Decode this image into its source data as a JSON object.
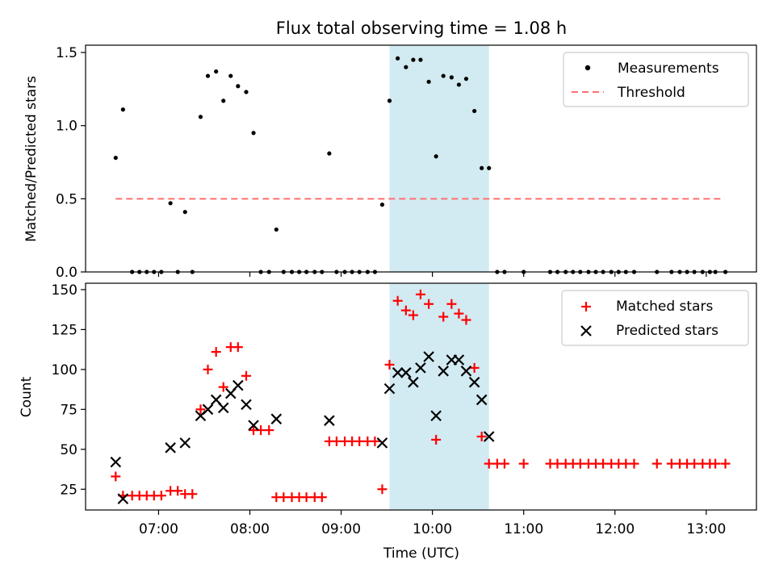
{
  "title": "Flux total observing time = 1.08 h",
  "colors": {
    "threshold": "#ff7070",
    "matched": "#ff0000",
    "predicted": "#000000",
    "span": "#add8e6"
  },
  "chart_data": [
    {
      "type": "scatter",
      "ylabel": "Matched/Predicted stars",
      "ylim": [
        0,
        1.55
      ],
      "xlim_hours": [
        6.2,
        13.55
      ],
      "yticks": [
        0.0,
        0.5,
        1.0,
        1.5
      ],
      "ytick_labels": [
        "0.0",
        "0.5",
        "1.0",
        "1.5"
      ],
      "highlight_span_hours": [
        9.53,
        10.62
      ],
      "threshold": {
        "value": 0.5,
        "x_hours": [
          6.53,
          13.2
        ]
      },
      "legend_location": "upper right",
      "legend": [
        "Measurements",
        "Threshold"
      ],
      "series": [
        {
          "name": "Measurements",
          "x": [
            6.53,
            6.61,
            6.71,
            6.79,
            6.87,
            6.95,
            7.03,
            7.13,
            7.21,
            7.29,
            7.37,
            7.46,
            7.54,
            7.63,
            7.71,
            7.79,
            7.87,
            7.96,
            8.04,
            8.12,
            8.21,
            8.29,
            8.37,
            8.46,
            8.54,
            8.62,
            8.71,
            8.79,
            8.87,
            8.95,
            9.04,
            9.12,
            9.2,
            9.29,
            9.37,
            9.45,
            9.53,
            9.62,
            9.71,
            9.79,
            9.87,
            9.96,
            10.04,
            10.12,
            10.21,
            10.29,
            10.37,
            10.46,
            10.54,
            10.62,
            10.71,
            10.79,
            11.0,
            11.29,
            11.37,
            11.46,
            11.54,
            11.62,
            11.71,
            11.79,
            11.87,
            11.96,
            12.04,
            12.12,
            12.21,
            12.46,
            12.62,
            12.71,
            12.79,
            12.87,
            12.96,
            13.04,
            13.1,
            13.21
          ],
          "y": [
            0.78,
            1.11,
            0,
            0,
            0,
            0,
            0,
            0.47,
            0,
            0.41,
            0,
            1.06,
            1.34,
            1.37,
            1.17,
            1.34,
            1.27,
            1.23,
            0.95,
            0,
            0,
            0.29,
            0,
            0,
            0,
            0,
            0,
            0,
            0.81,
            0,
            0,
            0,
            0,
            0,
            0,
            0.46,
            1.17,
            1.46,
            1.4,
            1.45,
            1.45,
            1.3,
            0.79,
            1.34,
            1.33,
            1.28,
            1.32,
            1.1,
            0.71,
            0.71,
            0,
            0,
            0,
            0,
            0,
            0,
            0,
            0,
            0,
            0,
            0,
            0,
            0,
            0,
            0,
            0,
            0,
            0,
            0,
            0,
            0,
            0,
            0,
            0
          ]
        }
      ]
    },
    {
      "type": "scatter",
      "ylabel": "Count",
      "xlabel": "Time (UTC)",
      "ylim": [
        12,
        154
      ],
      "xlim_hours": [
        6.2,
        13.55
      ],
      "yticks": [
        25,
        50,
        75,
        100,
        125,
        150
      ],
      "ytick_labels": [
        "25",
        "50",
        "75",
        "100",
        "125",
        "150"
      ],
      "xticks_hours": [
        7,
        8,
        9,
        10,
        11,
        12,
        13
      ],
      "xtick_labels": [
        "07:00",
        "08:00",
        "09:00",
        "10:00",
        "11:00",
        "12:00",
        "13:00"
      ],
      "highlight_span_hours": [
        9.53,
        10.62
      ],
      "legend_location": "upper right",
      "legend": [
        "Matched stars",
        "Predicted stars"
      ],
      "series": [
        {
          "name": "Matched stars",
          "marker": "+",
          "x": [
            6.53,
            6.61,
            6.71,
            6.79,
            6.87,
            6.95,
            7.03,
            7.13,
            7.21,
            7.29,
            7.37,
            7.46,
            7.54,
            7.63,
            7.71,
            7.79,
            7.87,
            7.96,
            8.04,
            8.12,
            8.21,
            8.29,
            8.37,
            8.46,
            8.54,
            8.62,
            8.71,
            8.79,
            8.87,
            8.95,
            9.04,
            9.12,
            9.2,
            9.29,
            9.37,
            9.45,
            9.53,
            9.62,
            9.71,
            9.79,
            9.87,
            9.96,
            10.04,
            10.12,
            10.21,
            10.29,
            10.37,
            10.46,
            10.54,
            10.62,
            10.71,
            10.79,
            11.0,
            11.29,
            11.37,
            11.46,
            11.54,
            11.62,
            11.71,
            11.79,
            11.87,
            11.96,
            12.04,
            12.12,
            12.21,
            12.46,
            12.62,
            12.71,
            12.79,
            12.87,
            12.96,
            13.04,
            13.1,
            13.21
          ],
          "y": [
            33,
            21,
            21,
            21,
            21,
            21,
            21,
            24,
            24,
            22,
            22,
            75,
            100,
            111,
            89,
            114,
            114,
            96,
            62,
            62,
            62,
            20,
            20,
            20,
            20,
            20,
            20,
            20,
            55,
            55,
            55,
            55,
            55,
            55,
            55,
            25,
            103,
            143,
            137,
            134,
            147,
            141,
            56,
            133,
            141,
            135,
            131,
            101,
            58,
            41,
            41,
            41,
            41,
            41,
            41,
            41,
            41,
            41,
            41,
            41,
            41,
            41,
            41,
            41,
            41,
            41,
            41,
            41,
            41,
            41,
            41,
            41,
            41,
            41
          ]
        },
        {
          "name": "Predicted stars",
          "marker": "x",
          "x": [
            6.53,
            6.61,
            7.13,
            7.29,
            7.46,
            7.54,
            7.63,
            7.71,
            7.79,
            7.87,
            7.96,
            8.04,
            8.29,
            8.87,
            9.45,
            9.53,
            9.62,
            9.71,
            9.79,
            9.87,
            9.96,
            10.04,
            10.12,
            10.21,
            10.29,
            10.37,
            10.46,
            10.54,
            10.62
          ],
          "y": [
            42,
            19,
            51,
            54,
            71,
            75,
            81,
            76,
            85,
            90,
            78,
            65,
            69,
            68,
            54,
            88,
            98,
            98,
            92,
            101,
            108,
            71,
            99,
            106,
            106,
            99,
            92,
            81,
            58
          ]
        }
      ]
    }
  ]
}
